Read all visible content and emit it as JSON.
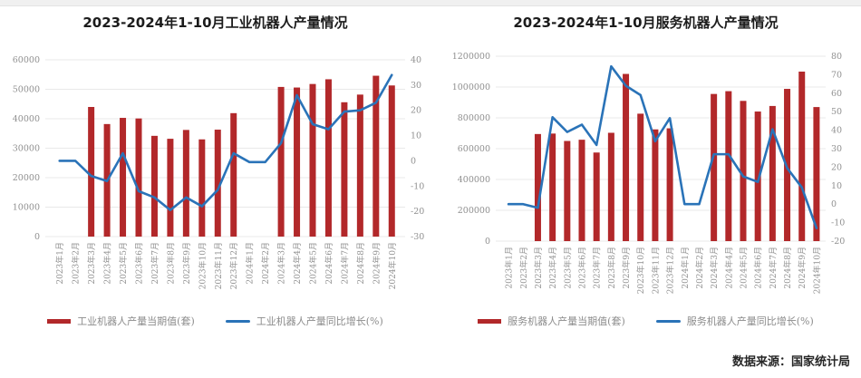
{
  "page": {
    "source_note": "数据来源：国家统计局"
  },
  "chart_data": [
    {
      "type": "bar",
      "subtype": "bar+line combo",
      "title": "2023-2024年1-10月工业机器人产量情况",
      "categories": [
        "2023年1月",
        "2023年2月",
        "2023年3月",
        "2023年4月",
        "2023年5月",
        "2023年6月",
        "2023年7月",
        "2023年8月",
        "2023年9月",
        "2023年10月",
        "2023年11月",
        "2023年12月",
        "2024年1月",
        "2024年2月",
        "2024年3月",
        "2024年4月",
        "2024年5月",
        "2024年6月",
        "2024年7月",
        "2024年8月",
        "2024年9月",
        "2024年10月"
      ],
      "series": [
        {
          "name": "工业机器人产量当期值(套)",
          "type": "bar",
          "axis": "left",
          "color": "#b2282a",
          "values": [
            null,
            null,
            44000,
            38200,
            40300,
            40100,
            34200,
            33200,
            36200,
            33000,
            36300,
            41900,
            null,
            null,
            50800,
            50600,
            51800,
            53400,
            45600,
            48200,
            54600,
            51300
          ]
        },
        {
          "name": "工业机器人产量同比增长(%)",
          "type": "line",
          "axis": "right",
          "color": "#2a73b8",
          "values": [
            0,
            0,
            -6,
            -8,
            3,
            -12,
            -14.5,
            -19.5,
            -14.5,
            -18,
            -11.5,
            3,
            -0.5,
            -0.5,
            7,
            26,
            14.5,
            12.5,
            19.5,
            20,
            23,
            34
          ]
        }
      ],
      "y_left": {
        "min": 0,
        "max": 60000,
        "step": 10000,
        "ticks": [
          0,
          10000,
          20000,
          30000,
          40000,
          50000,
          60000
        ]
      },
      "y_right": {
        "min": -30,
        "max": 40,
        "step": 10,
        "ticks": [
          -30,
          -20,
          -10,
          0,
          10,
          20,
          30,
          40
        ]
      },
      "grid": true,
      "legend_position": "bottom"
    },
    {
      "type": "bar",
      "subtype": "bar+line combo",
      "title": "2023-2024年1-10月服务机器人产量情况",
      "categories": [
        "2023年1月",
        "2023年2月",
        "2023年3月",
        "2023年4月",
        "2023年5月",
        "2023年6月",
        "2023年7月",
        "2023年8月",
        "2023年9月",
        "2023年10月",
        "2023年11月",
        "2023年12月",
        "2024年1月",
        "2024年2月",
        "2024年3月",
        "2024年4月",
        "2024年5月",
        "2024年6月",
        "2024年7月",
        "2024年8月",
        "2024年9月",
        "2024年10月"
      ],
      "series": [
        {
          "name": "服务机器人产量当期值(套)",
          "type": "bar",
          "axis": "left",
          "color": "#b2282a",
          "values": [
            null,
            null,
            695000,
            698000,
            650000,
            658000,
            575000,
            703000,
            1085000,
            827000,
            725000,
            732000,
            null,
            null,
            955000,
            973000,
            910000,
            841000,
            877000,
            988000,
            1100000,
            870000
          ]
        },
        {
          "name": "服务机器人产量同比增长(%)",
          "type": "line",
          "axis": "right",
          "color": "#2a73b8",
          "values": [
            0,
            0,
            -2,
            47,
            39,
            43,
            32,
            74.5,
            64,
            59,
            34,
            46.5,
            0,
            0,
            27,
            27,
            15,
            12,
            40.5,
            19.5,
            9,
            -13
          ]
        }
      ],
      "y_left": {
        "min": 0,
        "max": 1200000,
        "step": 200000,
        "ticks": [
          0,
          200000,
          400000,
          600000,
          800000,
          1000000,
          1200000
        ]
      },
      "y_right": {
        "min": -20,
        "max": 80,
        "step": 10,
        "ticks": [
          -20,
          -10,
          0,
          10,
          20,
          30,
          40,
          50,
          60,
          70,
          80
        ]
      },
      "grid": true,
      "legend_position": "bottom"
    }
  ]
}
